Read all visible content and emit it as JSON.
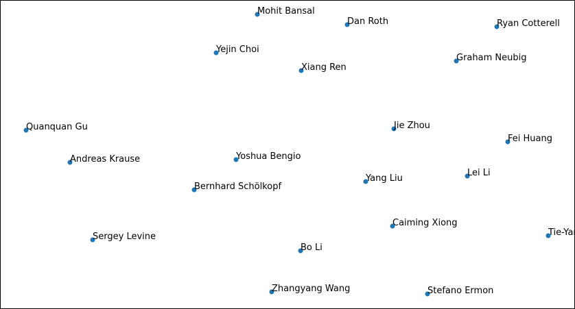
{
  "chart_data": {
    "type": "scatter",
    "title": "",
    "xlabel": "",
    "ylabel": "",
    "xlim": [
      0,
      83.7
    ],
    "ylim": [
      0,
      45
    ],
    "grid": false,
    "axes_visible": false,
    "marker_color": "#1f77b4",
    "points": [
      {
        "label": "Mohit Bansal",
        "x": 37.5,
        "y": 42.9
      },
      {
        "label": "Dan Roth",
        "x": 50.6,
        "y": 41.4
      },
      {
        "label": "Ryan Cotterell",
        "x": 72.4,
        "y": 41.1
      },
      {
        "label": "Yejin Choi",
        "x": 31.5,
        "y": 37.3
      },
      {
        "label": "Xiang Ren",
        "x": 43.9,
        "y": 34.7
      },
      {
        "label": "Graham Neubig",
        "x": 66.5,
        "y": 36.1
      },
      {
        "label": "Quanquan Gu",
        "x": 3.8,
        "y": 26.0
      },
      {
        "label": "Jie Zhou",
        "x": 57.4,
        "y": 26.2
      },
      {
        "label": "Fei Huang",
        "x": 74.0,
        "y": 24.3
      },
      {
        "label": "Andreas Krause",
        "x": 10.2,
        "y": 21.3
      },
      {
        "label": "Yoshua Bengio",
        "x": 34.4,
        "y": 21.7
      },
      {
        "label": "Bernhard Schölkopf",
        "x": 28.3,
        "y": 17.3
      },
      {
        "label": "Yang Liu",
        "x": 53.3,
        "y": 18.5
      },
      {
        "label": "Lei Li",
        "x": 68.1,
        "y": 19.3
      },
      {
        "label": "Caiming Xiong",
        "x": 57.2,
        "y": 12.0
      },
      {
        "label": "Tie-Yan Liu",
        "x": 79.9,
        "y": 10.6
      },
      {
        "label": "Sergey Levine",
        "x": 13.5,
        "y": 10.0
      },
      {
        "label": "Bo Li",
        "x": 43.8,
        "y": 8.4
      },
      {
        "label": "Zhangyang Wang",
        "x": 39.6,
        "y": 2.4
      },
      {
        "label": "Stefano Ermon",
        "x": 62.3,
        "y": 2.1
      }
    ]
  }
}
